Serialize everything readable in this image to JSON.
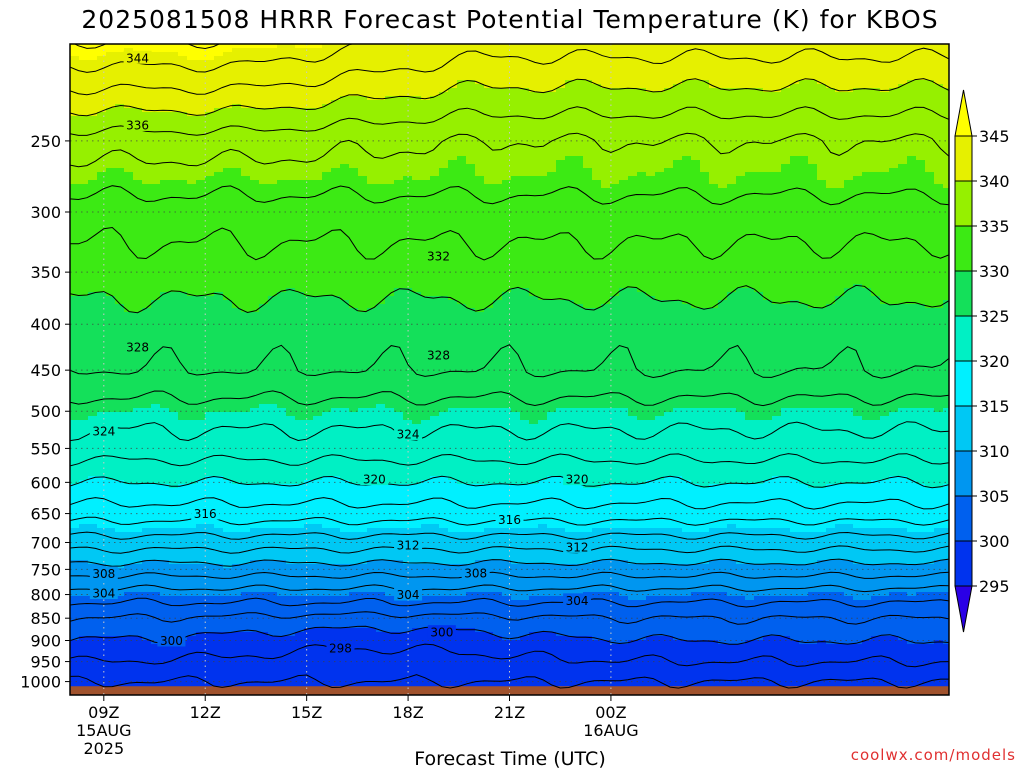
{
  "chart_data": {
    "type": "contour",
    "title": "2025081508 HRRR Forecast Potential Temperature (K) for KBOS",
    "xlabel": "Forecast Time (UTC)",
    "ylabel": "",
    "units": "K",
    "y_axis": {
      "scale": "log",
      "direction": "reversed",
      "range": [
        195,
        1035
      ],
      "ticks": [
        "250",
        "300",
        "350",
        "400",
        "450",
        "500",
        "550",
        "600",
        "650",
        "700",
        "750",
        "800",
        "850",
        "900",
        "950",
        "1000"
      ]
    },
    "x_axis": {
      "range": [
        8,
        34
      ],
      "ticks": [
        {
          "value": 9,
          "lines": [
            "09Z",
            "15AUG",
            "2025"
          ]
        },
        {
          "value": 12,
          "lines": [
            "12Z"
          ]
        },
        {
          "value": 15,
          "lines": [
            "15Z"
          ]
        },
        {
          "value": 18,
          "lines": [
            "18Z"
          ]
        },
        {
          "value": 21,
          "lines": [
            "21Z"
          ]
        },
        {
          "value": 24,
          "lines": [
            "00Z",
            "16AUG"
          ]
        }
      ]
    },
    "grid": true,
    "colorbar": {
      "levels": [
        "295",
        "300",
        "305",
        "310",
        "315",
        "320",
        "325",
        "330",
        "335",
        "340",
        "345"
      ],
      "colors": [
        "#2a00e6",
        "#0033ee",
        "#0060ee",
        "#0096f0",
        "#00c8f4",
        "#00f0ff",
        "#00f0c4",
        "#14e05a",
        "#3cea14",
        "#96f000",
        "#e6f000",
        "#ffff00"
      ]
    },
    "ground_color": "#a0522d",
    "contour_interval": 2,
    "contour_labels": [
      {
        "value": "344",
        "x": 10.0,
        "p": 202
      },
      {
        "value": "336",
        "x": 10.0,
        "p": 240
      },
      {
        "value": "332",
        "x": 18.9,
        "p": 336
      },
      {
        "value": "328",
        "x": 10.0,
        "p": 424
      },
      {
        "value": "328",
        "x": 18.9,
        "p": 433
      },
      {
        "value": "324",
        "x": 9.0,
        "p": 526
      },
      {
        "value": "324",
        "x": 18.0,
        "p": 530
      },
      {
        "value": "320",
        "x": 17.0,
        "p": 595
      },
      {
        "value": "320",
        "x": 23.0,
        "p": 595
      },
      {
        "value": "316",
        "x": 12.0,
        "p": 650
      },
      {
        "value": "316",
        "x": 21.0,
        "p": 660
      },
      {
        "value": "312",
        "x": 18.0,
        "p": 705
      },
      {
        "value": "312",
        "x": 23.0,
        "p": 708
      },
      {
        "value": "308",
        "x": 9.0,
        "p": 758
      },
      {
        "value": "308",
        "x": 20.0,
        "p": 757
      },
      {
        "value": "304",
        "x": 9.0,
        "p": 797
      },
      {
        "value": "304",
        "x": 18.0,
        "p": 800
      },
      {
        "value": "304",
        "x": 23.0,
        "p": 812
      },
      {
        "value": "300",
        "x": 11.0,
        "p": 900
      },
      {
        "value": "300",
        "x": 19.0,
        "p": 881
      },
      {
        "value": "298",
        "x": 16.0,
        "p": 917
      }
    ]
  },
  "credit": "coolwx.com/models"
}
